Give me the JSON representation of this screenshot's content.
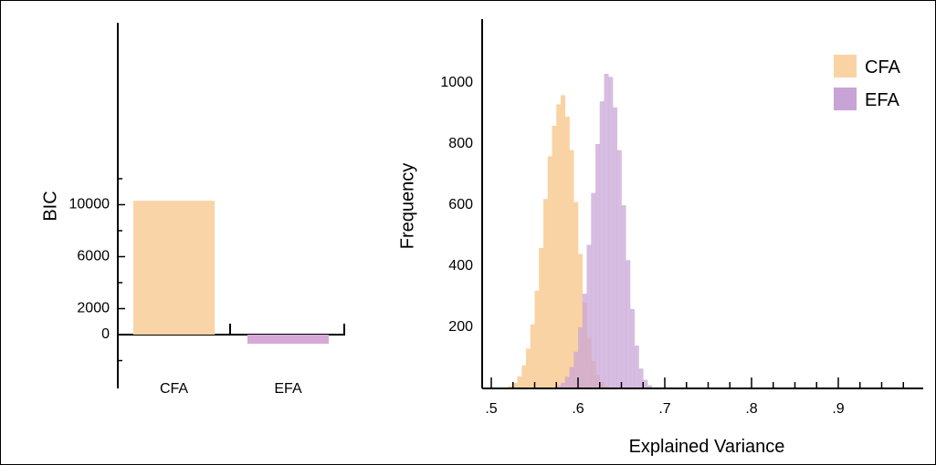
{
  "chart_data": [
    {
      "type": "bar",
      "ylabel": "BIC",
      "categories": [
        "CFA",
        "EFA"
      ],
      "values": [
        10300,
        -700
      ],
      "colors": [
        "#f9d4a6",
        "#d6a8d8"
      ],
      "ylim": [
        -2100,
        12000
      ],
      "yticks": [
        0,
        2000,
        6000,
        10000
      ],
      "ytick_labels": [
        "0",
        "2000",
        "6000",
        "10000"
      ],
      "grid": false
    },
    {
      "type": "histogram",
      "xlabel": "Explained Variance",
      "ylabel": "Frequency",
      "xlim": [
        0.5,
        1.0
      ],
      "ylim": [
        0,
        1200
      ],
      "xticks": [
        0.5,
        0.6,
        0.7,
        0.8,
        0.9
      ],
      "xtick_labels": [
        ".5",
        ".6",
        ".7",
        ".8",
        ".9"
      ],
      "yticks": [
        200,
        400,
        600,
        800,
        1000
      ],
      "ytick_labels": [
        "200",
        "400",
        "600",
        "800",
        "1000"
      ],
      "bin_width": 0.005,
      "grid": false,
      "legend_position": "top-right",
      "series": [
        {
          "name": "CFA",
          "color": "#fad3a4",
          "bin_start": 0.515,
          "counts": [
            3,
            8,
            18,
            40,
            75,
            130,
            210,
            320,
            460,
            620,
            760,
            860,
            930,
            960,
            890,
            780,
            610,
            440,
            280,
            165,
            90,
            45,
            20,
            8,
            3
          ]
        },
        {
          "name": "EFA",
          "color": "#c7a3d6",
          "bin_start": 0.57,
          "counts": [
            3,
            8,
            18,
            38,
            70,
            120,
            200,
            310,
            470,
            640,
            800,
            940,
            1030,
            1020,
            920,
            780,
            600,
            420,
            260,
            140,
            65,
            28,
            10,
            3
          ]
        }
      ]
    }
  ]
}
